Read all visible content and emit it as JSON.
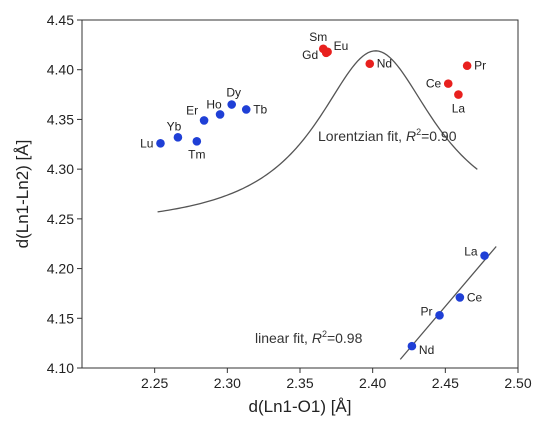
{
  "chart_data": {
    "type": "scatter",
    "xlabel": "d(Ln1-O1) [Å]",
    "ylabel": "d(Ln1-Ln2) [Å]",
    "xlim": [
      2.2,
      2.5
    ],
    "ylim": [
      4.1,
      4.45
    ],
    "xticks": [
      2.25,
      2.3,
      2.35,
      2.4,
      2.45,
      2.5
    ],
    "yticks": [
      4.1,
      4.15,
      4.2,
      4.25,
      4.3,
      4.35,
      4.4,
      4.45
    ],
    "xtick_labels": [
      "2.25",
      "2.30",
      "2.35",
      "2.40",
      "2.45",
      "2.50"
    ],
    "ytick_labels": [
      "4.10",
      "4.15",
      "4.20",
      "4.25",
      "4.30",
      "4.35",
      "4.40",
      "4.45"
    ],
    "colors": {
      "blue": "#1f3fd6",
      "red": "#e8201e",
      "fit": "#555555"
    },
    "series": [
      {
        "color": "blue",
        "points": [
          {
            "label": "Lu",
            "x": 2.254,
            "y": 4.326
          },
          {
            "label": "Yb",
            "x": 2.266,
            "y": 4.332
          },
          {
            "label": "Tm",
            "x": 2.279,
            "y": 4.328
          },
          {
            "label": "Er",
            "x": 2.284,
            "y": 4.349
          },
          {
            "label": "Ho",
            "x": 2.295,
            "y": 4.355
          },
          {
            "label": "Dy",
            "x": 2.303,
            "y": 4.365
          },
          {
            "label": "Tb",
            "x": 2.313,
            "y": 4.36
          }
        ]
      },
      {
        "color": "red",
        "points": [
          {
            "label": "Sm",
            "x": 2.366,
            "y": 4.421
          },
          {
            "label": "Gd",
            "x": 2.368,
            "y": 4.417
          },
          {
            "label": "Eu",
            "x": 2.369,
            "y": 4.418
          },
          {
            "label": "Nd",
            "x": 2.398,
            "y": 4.406
          },
          {
            "label": "Ce",
            "x": 2.452,
            "y": 4.386
          },
          {
            "label": "La",
            "x": 2.459,
            "y": 4.375
          },
          {
            "label": "Pr",
            "x": 2.465,
            "y": 4.404
          }
        ]
      },
      {
        "color": "blue",
        "points": [
          {
            "label": "Nd",
            "x": 2.427,
            "y": 4.122
          },
          {
            "label": "Pr",
            "x": 2.446,
            "y": 4.153
          },
          {
            "label": "Ce",
            "x": 2.46,
            "y": 4.171
          },
          {
            "label": "La",
            "x": 2.477,
            "y": 4.213
          }
        ]
      }
    ],
    "fits": [
      {
        "type": "lorentzian",
        "annotation_prefix": "Lorentzian fit, ",
        "annotation_r": "R",
        "annotation_sup": "2",
        "annotation_value": "=0.90",
        "x_range": [
          2.252,
          2.472
        ],
        "peak_x": 2.402,
        "peak_y": 4.419,
        "width": 0.05,
        "amplitude": 0.18
      },
      {
        "type": "linear",
        "annotation_prefix": "linear fit, ",
        "annotation_r": "R",
        "annotation_sup": "2",
        "annotation_value": "=0.98",
        "x_range": [
          2.419,
          2.485
        ],
        "slope": 1.72,
        "intercept": -0.052
      }
    ]
  }
}
